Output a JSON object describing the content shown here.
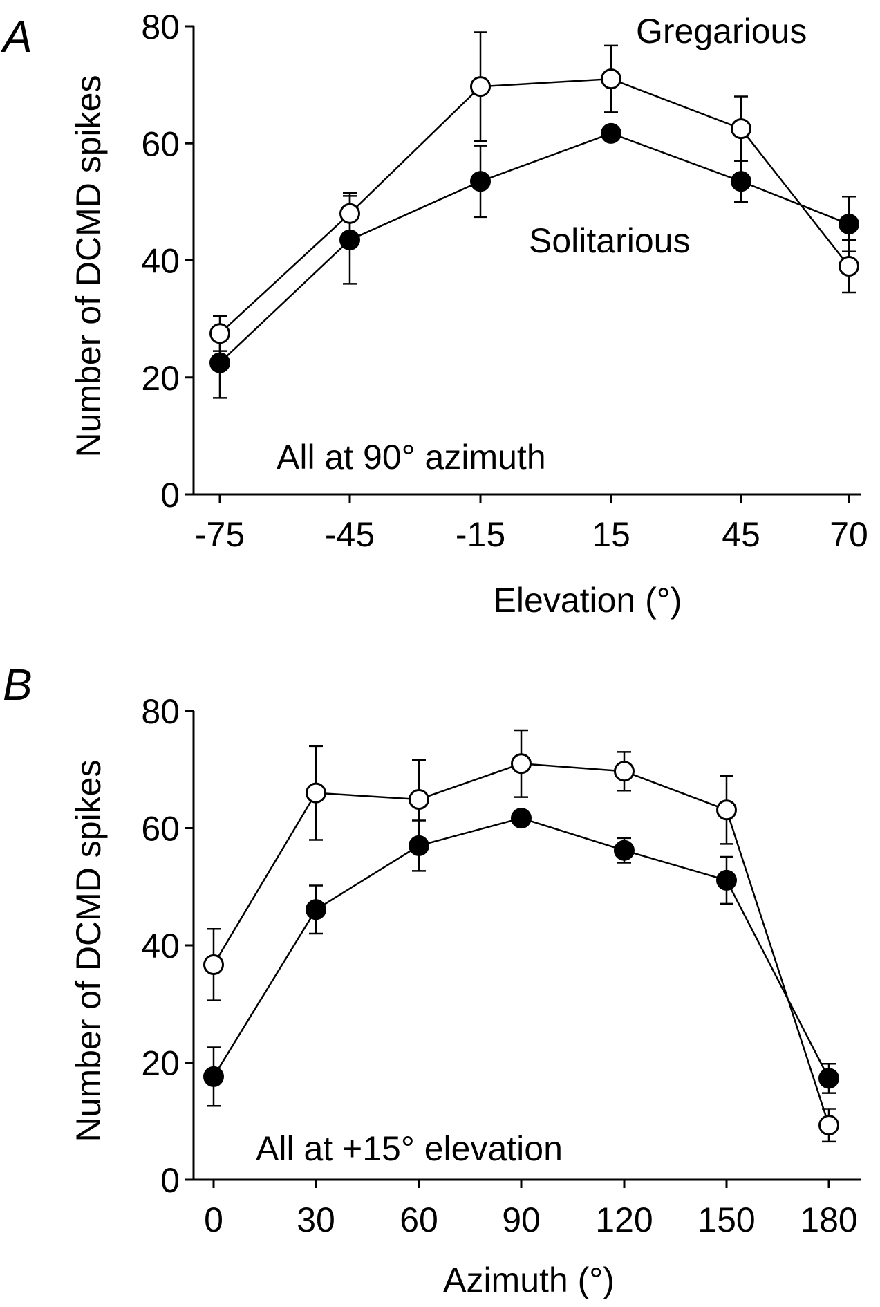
{
  "chart_data": [
    {
      "panel_label": "A",
      "type": "line",
      "xlabel": "Elevation (°)",
      "ylabel": "Number of DCMD spikes",
      "ylim": [
        0,
        80
      ],
      "yticks": [
        "0",
        "20",
        "40",
        "60",
        "80"
      ],
      "categories": [
        "-75",
        "-45",
        "-15",
        "15",
        "45",
        "70"
      ],
      "annotation": "All at 90° azimuth",
      "series": [
        {
          "name": "Gregarious",
          "marker": "open-circle",
          "values": [
            27.5,
            48,
            69.7,
            71,
            62.5,
            39
          ],
          "errors": [
            3,
            3.5,
            9.3,
            5.7,
            5.5,
            4.5
          ]
        },
        {
          "name": "Solitarious",
          "marker": "filled-circle",
          "values": [
            22.5,
            43.5,
            53.5,
            61.7,
            53.5,
            46.2
          ],
          "errors": [
            6,
            7.5,
            6.1,
            0,
            3.5,
            4.7
          ]
        }
      ]
    },
    {
      "panel_label": "B",
      "type": "line",
      "xlabel": "Azimuth (°)",
      "ylabel": "Number of DCMD spikes",
      "ylim": [
        0,
        80
      ],
      "yticks": [
        "0",
        "20",
        "40",
        "60",
        "80"
      ],
      "categories": [
        "0",
        "30",
        "60",
        "90",
        "120",
        "150",
        "180"
      ],
      "annotation": "All at +15° elevation",
      "series": [
        {
          "name": "Gregarious",
          "marker": "open-circle",
          "values": [
            36.7,
            66,
            64.9,
            71,
            69.7,
            63.1,
            9.3
          ],
          "errors": [
            6.1,
            8,
            6.7,
            5.7,
            3.3,
            5.8,
            2.8
          ]
        },
        {
          "name": "Solitarious",
          "marker": "filled-circle",
          "values": [
            17.6,
            46.1,
            57,
            61.7,
            56.2,
            51.1,
            17.3
          ],
          "errors": [
            5,
            4.1,
            4.3,
            0,
            2.1,
            4,
            2.5
          ]
        }
      ]
    }
  ]
}
